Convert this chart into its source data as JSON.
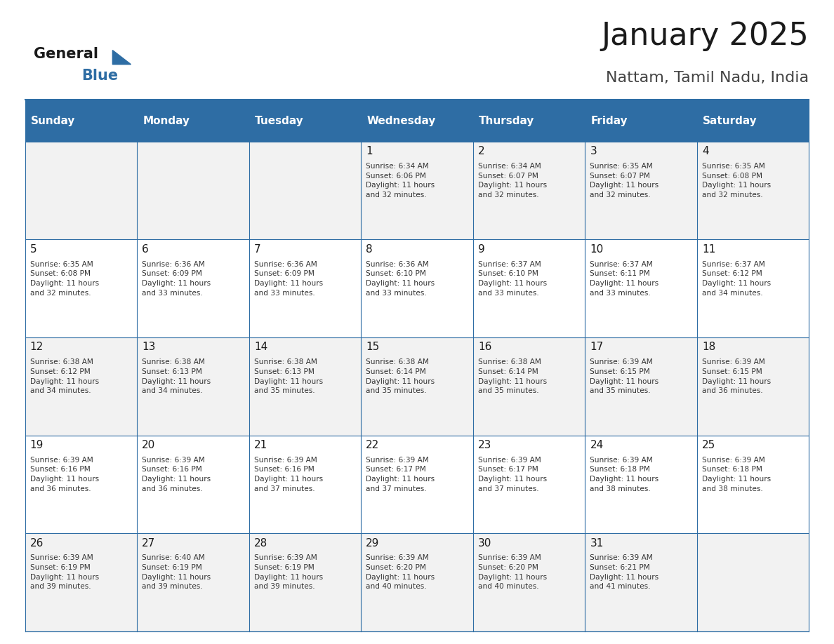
{
  "title": "January 2025",
  "subtitle": "Nattam, Tamil Nadu, India",
  "days_of_week": [
    "Sunday",
    "Monday",
    "Tuesday",
    "Wednesday",
    "Thursday",
    "Friday",
    "Saturday"
  ],
  "header_bg": "#2E6DA4",
  "header_text": "#FFFFFF",
  "cell_bg_even": "#F2F2F2",
  "cell_bg_odd": "#FFFFFF",
  "cell_border": "#2E6DA4",
  "day_num_color": "#1A1A1A",
  "text_color": "#333333",
  "title_color": "#1A1A1A",
  "subtitle_color": "#444444",
  "logo_general_color": "#1A1A1A",
  "logo_blue_color": "#2E6DA4",
  "weeks": [
    [
      {
        "day": 0,
        "text": ""
      },
      {
        "day": 0,
        "text": ""
      },
      {
        "day": 0,
        "text": ""
      },
      {
        "day": 1,
        "text": "Sunrise: 6:34 AM\nSunset: 6:06 PM\nDaylight: 11 hours\nand 32 minutes."
      },
      {
        "day": 2,
        "text": "Sunrise: 6:34 AM\nSunset: 6:07 PM\nDaylight: 11 hours\nand 32 minutes."
      },
      {
        "day": 3,
        "text": "Sunrise: 6:35 AM\nSunset: 6:07 PM\nDaylight: 11 hours\nand 32 minutes."
      },
      {
        "day": 4,
        "text": "Sunrise: 6:35 AM\nSunset: 6:08 PM\nDaylight: 11 hours\nand 32 minutes."
      }
    ],
    [
      {
        "day": 5,
        "text": "Sunrise: 6:35 AM\nSunset: 6:08 PM\nDaylight: 11 hours\nand 32 minutes."
      },
      {
        "day": 6,
        "text": "Sunrise: 6:36 AM\nSunset: 6:09 PM\nDaylight: 11 hours\nand 33 minutes."
      },
      {
        "day": 7,
        "text": "Sunrise: 6:36 AM\nSunset: 6:09 PM\nDaylight: 11 hours\nand 33 minutes."
      },
      {
        "day": 8,
        "text": "Sunrise: 6:36 AM\nSunset: 6:10 PM\nDaylight: 11 hours\nand 33 minutes."
      },
      {
        "day": 9,
        "text": "Sunrise: 6:37 AM\nSunset: 6:10 PM\nDaylight: 11 hours\nand 33 minutes."
      },
      {
        "day": 10,
        "text": "Sunrise: 6:37 AM\nSunset: 6:11 PM\nDaylight: 11 hours\nand 33 minutes."
      },
      {
        "day": 11,
        "text": "Sunrise: 6:37 AM\nSunset: 6:12 PM\nDaylight: 11 hours\nand 34 minutes."
      }
    ],
    [
      {
        "day": 12,
        "text": "Sunrise: 6:38 AM\nSunset: 6:12 PM\nDaylight: 11 hours\nand 34 minutes."
      },
      {
        "day": 13,
        "text": "Sunrise: 6:38 AM\nSunset: 6:13 PM\nDaylight: 11 hours\nand 34 minutes."
      },
      {
        "day": 14,
        "text": "Sunrise: 6:38 AM\nSunset: 6:13 PM\nDaylight: 11 hours\nand 35 minutes."
      },
      {
        "day": 15,
        "text": "Sunrise: 6:38 AM\nSunset: 6:14 PM\nDaylight: 11 hours\nand 35 minutes."
      },
      {
        "day": 16,
        "text": "Sunrise: 6:38 AM\nSunset: 6:14 PM\nDaylight: 11 hours\nand 35 minutes."
      },
      {
        "day": 17,
        "text": "Sunrise: 6:39 AM\nSunset: 6:15 PM\nDaylight: 11 hours\nand 35 minutes."
      },
      {
        "day": 18,
        "text": "Sunrise: 6:39 AM\nSunset: 6:15 PM\nDaylight: 11 hours\nand 36 minutes."
      }
    ],
    [
      {
        "day": 19,
        "text": "Sunrise: 6:39 AM\nSunset: 6:16 PM\nDaylight: 11 hours\nand 36 minutes."
      },
      {
        "day": 20,
        "text": "Sunrise: 6:39 AM\nSunset: 6:16 PM\nDaylight: 11 hours\nand 36 minutes."
      },
      {
        "day": 21,
        "text": "Sunrise: 6:39 AM\nSunset: 6:16 PM\nDaylight: 11 hours\nand 37 minutes."
      },
      {
        "day": 22,
        "text": "Sunrise: 6:39 AM\nSunset: 6:17 PM\nDaylight: 11 hours\nand 37 minutes."
      },
      {
        "day": 23,
        "text": "Sunrise: 6:39 AM\nSunset: 6:17 PM\nDaylight: 11 hours\nand 37 minutes."
      },
      {
        "day": 24,
        "text": "Sunrise: 6:39 AM\nSunset: 6:18 PM\nDaylight: 11 hours\nand 38 minutes."
      },
      {
        "day": 25,
        "text": "Sunrise: 6:39 AM\nSunset: 6:18 PM\nDaylight: 11 hours\nand 38 minutes."
      }
    ],
    [
      {
        "day": 26,
        "text": "Sunrise: 6:39 AM\nSunset: 6:19 PM\nDaylight: 11 hours\nand 39 minutes."
      },
      {
        "day": 27,
        "text": "Sunrise: 6:40 AM\nSunset: 6:19 PM\nDaylight: 11 hours\nand 39 minutes."
      },
      {
        "day": 28,
        "text": "Sunrise: 6:39 AM\nSunset: 6:19 PM\nDaylight: 11 hours\nand 39 minutes."
      },
      {
        "day": 29,
        "text": "Sunrise: 6:39 AM\nSunset: 6:20 PM\nDaylight: 11 hours\nand 40 minutes."
      },
      {
        "day": 30,
        "text": "Sunrise: 6:39 AM\nSunset: 6:20 PM\nDaylight: 11 hours\nand 40 minutes."
      },
      {
        "day": 31,
        "text": "Sunrise: 6:39 AM\nSunset: 6:21 PM\nDaylight: 11 hours\nand 41 minutes."
      },
      {
        "day": 0,
        "text": ""
      }
    ]
  ]
}
